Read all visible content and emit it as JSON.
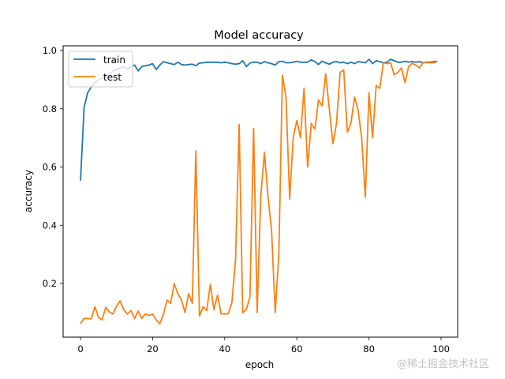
{
  "chart_data": {
    "type": "line",
    "title": "Model accuracy",
    "xlabel": "epoch",
    "ylabel": "accuracy",
    "xlim": [
      -5,
      104
    ],
    "ylim": [
      0.015,
      1.01
    ],
    "xticks": [
      0,
      20,
      40,
      60,
      80,
      100
    ],
    "xtick_labels": [
      "0",
      "20",
      "40",
      "60",
      "80",
      "100"
    ],
    "yticks": [
      0.2,
      0.4,
      0.6,
      0.8,
      1.0
    ],
    "ytick_labels": [
      "0.2",
      "0.4",
      "0.6",
      "0.8",
      "1.0"
    ],
    "grid": false,
    "legend_position": "upper left",
    "x": [
      0,
      1,
      2,
      3,
      4,
      5,
      6,
      7,
      8,
      9,
      10,
      11,
      12,
      13,
      14,
      15,
      16,
      17,
      18,
      19,
      20,
      21,
      22,
      23,
      24,
      25,
      26,
      27,
      28,
      29,
      30,
      31,
      32,
      33,
      34,
      35,
      36,
      37,
      38,
      39,
      40,
      41,
      42,
      43,
      44,
      45,
      46,
      47,
      48,
      49,
      50,
      51,
      52,
      53,
      54,
      55,
      56,
      57,
      58,
      59,
      60,
      61,
      62,
      63,
      64,
      65,
      66,
      67,
      68,
      69,
      70,
      71,
      72,
      73,
      74,
      75,
      76,
      77,
      78,
      79,
      80,
      81,
      82,
      83,
      84,
      85,
      86,
      87,
      88,
      89,
      90,
      91,
      92,
      93,
      94,
      95,
      96,
      97,
      98,
      99
    ],
    "series": [
      {
        "name": "train",
        "color": "#1f77b4",
        "values": [
          0.553,
          0.805,
          0.855,
          0.875,
          0.89,
          0.9,
          0.905,
          0.915,
          0.92,
          0.93,
          0.935,
          0.94,
          0.945,
          0.935,
          0.945,
          0.95,
          0.93,
          0.945,
          0.948,
          0.95,
          0.955,
          0.935,
          0.95,
          0.962,
          0.958,
          0.955,
          0.952,
          0.96,
          0.952,
          0.95,
          0.952,
          0.953,
          0.948,
          0.957,
          0.958,
          0.96,
          0.96,
          0.96,
          0.96,
          0.958,
          0.96,
          0.958,
          0.955,
          0.953,
          0.955,
          0.965,
          0.945,
          0.957,
          0.96,
          0.96,
          0.955,
          0.962,
          0.958,
          0.955,
          0.95,
          0.962,
          0.963,
          0.958,
          0.958,
          0.96,
          0.963,
          0.96,
          0.96,
          0.96,
          0.968,
          0.962,
          0.952,
          0.963,
          0.958,
          0.953,
          0.96,
          0.962,
          0.958,
          0.96,
          0.955,
          0.96,
          0.955,
          0.962,
          0.96,
          0.958,
          0.97,
          0.955,
          0.965,
          0.962,
          0.958,
          0.96,
          0.97,
          0.965,
          0.96,
          0.96,
          0.963,
          0.96,
          0.962,
          0.96,
          0.962,
          0.958,
          0.96,
          0.96,
          0.962,
          0.963
        ]
      },
      {
        "name": "test",
        "color": "#ff7f0e",
        "values": [
          0.062,
          0.08,
          0.08,
          0.078,
          0.12,
          0.083,
          0.075,
          0.118,
          0.102,
          0.095,
          0.122,
          0.14,
          0.11,
          0.095,
          0.107,
          0.08,
          0.105,
          0.08,
          0.096,
          0.09,
          0.095,
          0.075,
          0.062,
          0.094,
          0.143,
          0.132,
          0.2,
          0.165,
          0.143,
          0.1,
          0.165,
          0.132,
          0.655,
          0.088,
          0.12,
          0.107,
          0.197,
          0.11,
          0.16,
          0.096,
          0.095,
          0.096,
          0.135,
          0.28,
          0.746,
          0.1,
          0.11,
          0.155,
          0.733,
          0.1,
          0.5,
          0.65,
          0.5,
          0.38,
          0.1,
          0.3,
          0.915,
          0.838,
          0.49,
          0.7,
          0.76,
          0.7,
          0.87,
          0.6,
          0.75,
          0.73,
          0.83,
          0.81,
          0.92,
          0.8,
          0.68,
          0.75,
          0.925,
          0.933,
          0.72,
          0.75,
          0.84,
          0.795,
          0.695,
          0.496,
          0.855,
          0.7,
          0.88,
          0.87,
          0.958,
          0.955,
          0.958,
          0.917,
          0.925,
          0.94,
          0.89,
          0.945,
          0.956,
          0.95,
          0.94,
          0.958,
          0.958,
          0.958,
          0.958,
          0.963
        ]
      }
    ]
  },
  "legend": {
    "items": [
      {
        "label": "train",
        "color": "#1f77b4"
      },
      {
        "label": "test",
        "color": "#ff7f0e"
      }
    ]
  },
  "watermark": "@稀土掘金技术社区"
}
